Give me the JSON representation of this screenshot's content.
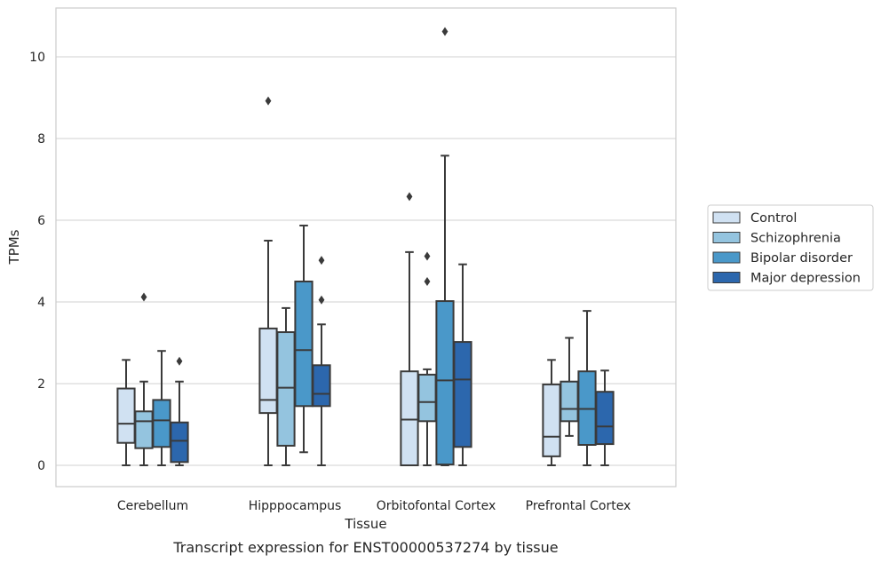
{
  "chart_data": {
    "type": "box",
    "title": "",
    "caption": "Transcript expression for ENST00000537274 by tissue",
    "xlabel": "Tissue",
    "ylabel": "TPMs",
    "ylim": [
      -0.5,
      11.2
    ],
    "yticks": [
      0,
      2,
      4,
      6,
      8,
      10
    ],
    "grid": "horizontal",
    "legend_position": "right",
    "categories": [
      "Cerebellum",
      "Hipppocampus",
      "Orbitofontal Cortex",
      "Prefrontal Cortex"
    ],
    "series": [
      {
        "name": "Control",
        "color": "#d0e1f2",
        "boxes": [
          {
            "whislo": 0,
            "q1": 0.55,
            "med": 1.02,
            "q3": 1.88,
            "whishi": 2.58,
            "fliers": []
          },
          {
            "whislo": 0,
            "q1": 1.28,
            "med": 1.6,
            "q3": 3.35,
            "whishi": 5.5,
            "fliers": [
              8.92
            ]
          },
          {
            "whislo": 0,
            "q1": 0,
            "med": 1.12,
            "q3": 2.3,
            "whishi": 5.22,
            "fliers": [
              6.58
            ]
          },
          {
            "whislo": 0,
            "q1": 0.22,
            "med": 0.7,
            "q3": 1.98,
            "whishi": 2.58,
            "fliers": []
          }
        ]
      },
      {
        "name": "Schizophrenia",
        "color": "#94c4df",
        "boxes": [
          {
            "whislo": 0,
            "q1": 0.42,
            "med": 1.08,
            "q3": 1.32,
            "whishi": 2.05,
            "fliers": [
              4.12
            ]
          },
          {
            "whislo": 0,
            "q1": 0.48,
            "med": 1.9,
            "q3": 3.26,
            "whishi": 3.85,
            "fliers": []
          },
          {
            "whislo": 0,
            "q1": 1.08,
            "med": 1.55,
            "q3": 2.22,
            "whishi": 2.35,
            "fliers": [
              4.5,
              5.12
            ]
          },
          {
            "whislo": 0.72,
            "q1": 1.08,
            "med": 1.38,
            "q3": 2.05,
            "whishi": 3.12,
            "fliers": []
          }
        ]
      },
      {
        "name": "Bipolar disorder",
        "color": "#4a98c9",
        "boxes": [
          {
            "whislo": 0,
            "q1": 0.45,
            "med": 1.1,
            "q3": 1.6,
            "whishi": 2.8,
            "fliers": []
          },
          {
            "whislo": 0.32,
            "q1": 1.45,
            "med": 2.82,
            "q3": 4.5,
            "whishi": 5.87,
            "fliers": []
          },
          {
            "whislo": 0,
            "q1": 0.02,
            "med": 2.08,
            "q3": 4.02,
            "whishi": 7.58,
            "fliers": [
              10.62
            ]
          },
          {
            "whislo": 0,
            "q1": 0.5,
            "med": 1.38,
            "q3": 2.3,
            "whishi": 3.78,
            "fliers": []
          }
        ]
      },
      {
        "name": "Major depression",
        "color": "#2c67ad",
        "boxes": [
          {
            "whislo": 0,
            "q1": 0.08,
            "med": 0.6,
            "q3": 1.05,
            "whishi": 2.05,
            "fliers": [
              2.55
            ]
          },
          {
            "whislo": 0,
            "q1": 1.45,
            "med": 1.75,
            "q3": 2.45,
            "whishi": 3.45,
            "fliers": [
              4.05,
              5.02
            ]
          },
          {
            "whislo": 0,
            "q1": 0.45,
            "med": 2.1,
            "q3": 3.02,
            "whishi": 4.92,
            "fliers": []
          },
          {
            "whislo": 0,
            "q1": 0.52,
            "med": 0.95,
            "q3": 1.8,
            "whishi": 2.32,
            "fliers": []
          }
        ]
      }
    ]
  }
}
